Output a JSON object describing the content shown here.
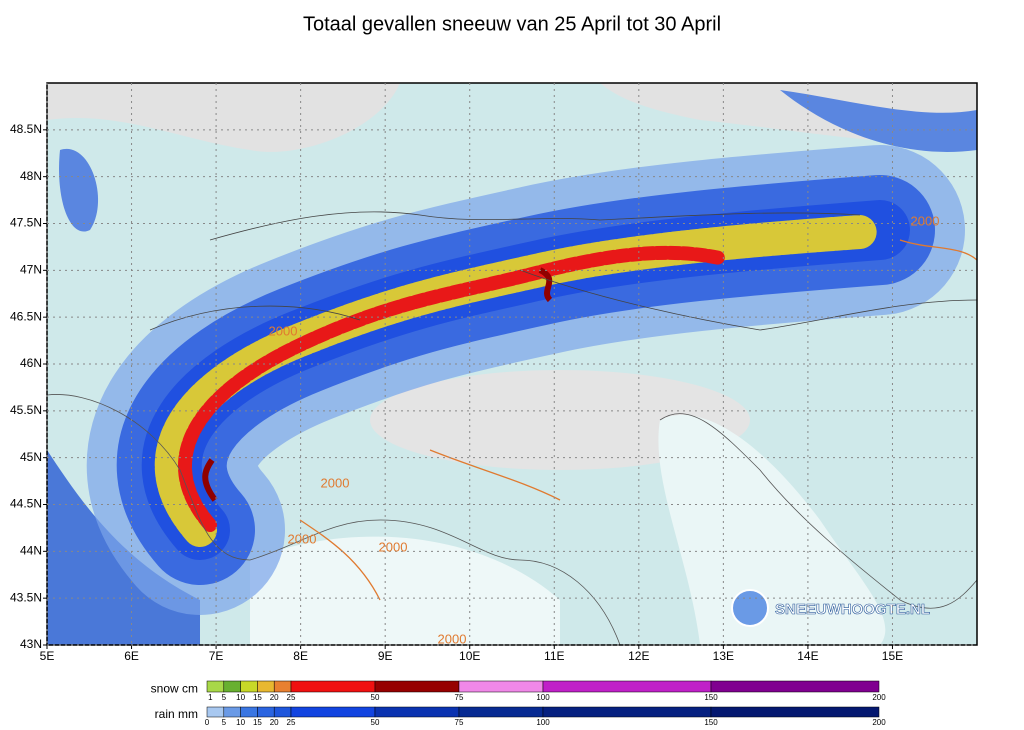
{
  "map": {
    "title": "Totaal gevallen sneeuw van 25 April tot 30 April",
    "xlim": [
      5,
      16
    ],
    "ylim": [
      43,
      49
    ],
    "xticks": [
      {
        "value": 5,
        "label": "5E"
      },
      {
        "value": 6,
        "label": "6E"
      },
      {
        "value": 7,
        "label": "7E"
      },
      {
        "value": 8,
        "label": "8E"
      },
      {
        "value": 9,
        "label": "9E"
      },
      {
        "value": 10,
        "label": "10E"
      },
      {
        "value": 11,
        "label": "11E"
      },
      {
        "value": 12,
        "label": "12E"
      },
      {
        "value": 13,
        "label": "13E"
      },
      {
        "value": 14,
        "label": "14E"
      },
      {
        "value": 15,
        "label": "15E"
      }
    ],
    "yticks": [
      {
        "value": 43,
        "label": "43N"
      },
      {
        "value": 43.5,
        "label": "43.5N"
      },
      {
        "value": 44,
        "label": "44N"
      },
      {
        "value": 44.5,
        "label": "44.5N"
      },
      {
        "value": 45,
        "label": "45N"
      },
      {
        "value": 45.5,
        "label": "45.5N"
      },
      {
        "value": 46,
        "label": "46N"
      },
      {
        "value": 46.5,
        "label": "46.5N"
      },
      {
        "value": 47,
        "label": "47N"
      },
      {
        "value": 47.5,
        "label": "47.5N"
      },
      {
        "value": 48,
        "label": "48N"
      },
      {
        "value": 48.5,
        "label": "48.5N"
      }
    ],
    "contour_labels": [
      "2000",
      "2000",
      "2000",
      "2000",
      "2000",
      "2000"
    ],
    "logo": "SNEEUWHOOGTE.NL",
    "legend": {
      "snow": {
        "label": "snow cm",
        "ticks": [
          1,
          5,
          10,
          15,
          20,
          25,
          50,
          75,
          100,
          150,
          200
        ],
        "colors": [
          "#a8d848",
          "#68b030",
          "#c8d828",
          "#e8b830",
          "#e88030",
          "#f01010",
          "#960000",
          "#f088e8",
          "#c020c8",
          "#800090"
        ]
      },
      "rain": {
        "label": "rain mm",
        "ticks": [
          0,
          5,
          10,
          15,
          20,
          25,
          50,
          75,
          100,
          150,
          200
        ],
        "colors": [
          "#a8c8f0",
          "#6a9ae6",
          "#3a76e2",
          "#2a64e0",
          "#1e56dc",
          "#1244e0",
          "#0a32b0",
          "#072a92",
          "#052080",
          "#041870"
        ]
      }
    }
  }
}
